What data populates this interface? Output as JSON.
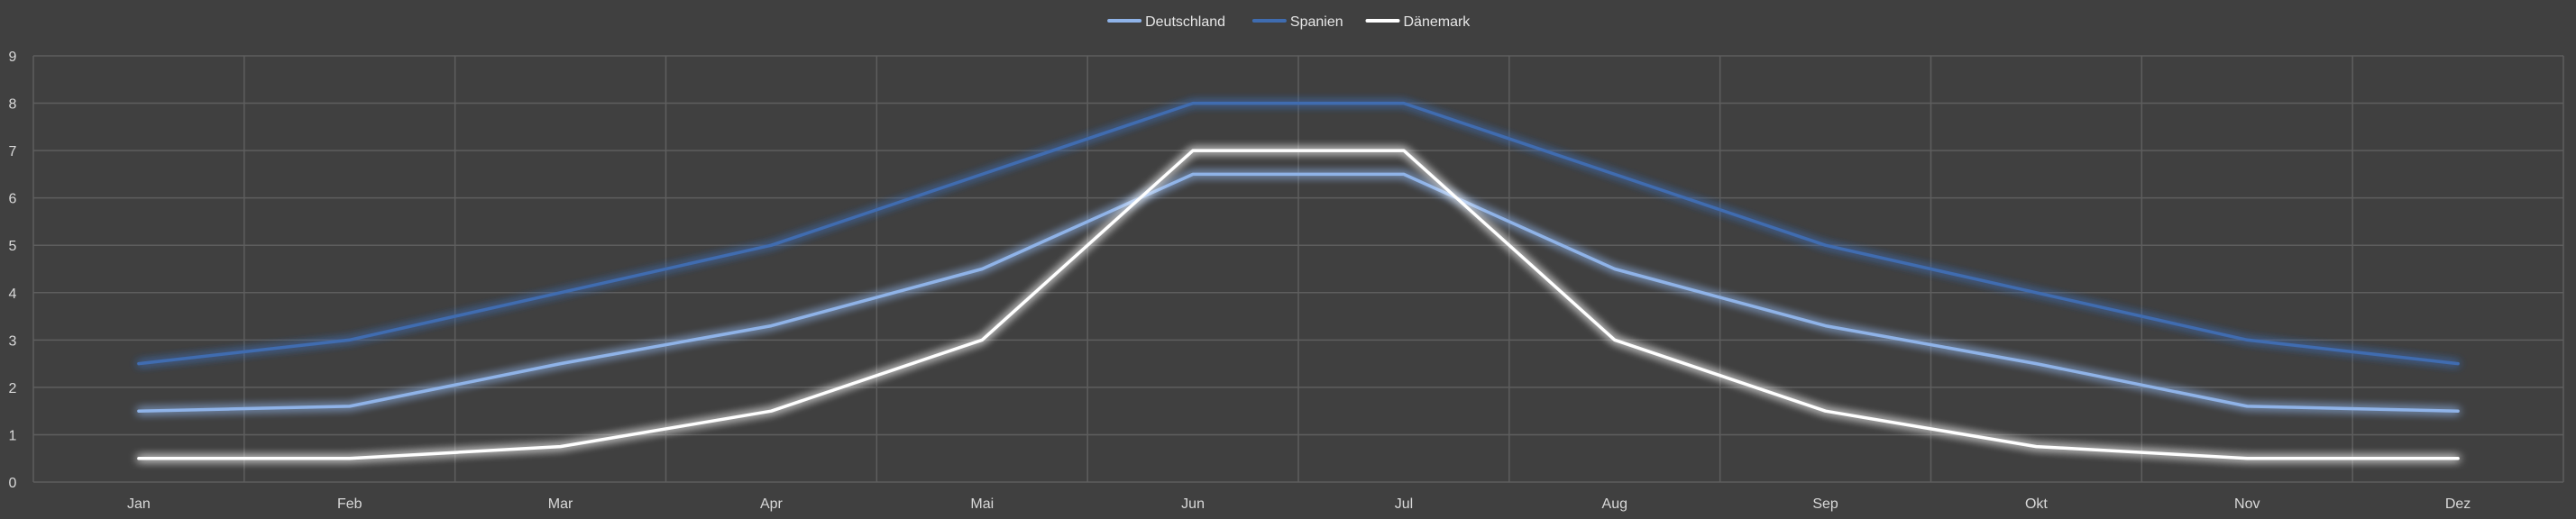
{
  "chart_data": {
    "type": "line",
    "title": "",
    "xlabel": "",
    "ylabel": "",
    "categories": [
      "Jan",
      "Feb",
      "Mar",
      "Apr",
      "Mai",
      "Jun",
      "Jul",
      "Aug",
      "Sep",
      "Okt",
      "Nov",
      "Dez"
    ],
    "ylim": [
      0,
      9
    ],
    "yticks": [
      0,
      1,
      2,
      3,
      4,
      5,
      6,
      7,
      8,
      9
    ],
    "grid": true,
    "legend_position": "top-center",
    "series": [
      {
        "name": "Deutschland",
        "color": "#8fb3e8",
        "values": [
          1.5,
          1.6,
          2.5,
          3.3,
          4.5,
          6.5,
          6.5,
          4.5,
          3.3,
          2.5,
          1.6,
          1.5
        ]
      },
      {
        "name": "Spanien",
        "color": "#3f6cb0",
        "values": [
          2.5,
          3.0,
          4.0,
          5.0,
          6.5,
          8.0,
          8.0,
          6.5,
          5.0,
          4.0,
          3.0,
          2.5
        ]
      },
      {
        "name": "Dänemark",
        "color": "#ffffff",
        "values": [
          0.5,
          0.5,
          0.75,
          1.5,
          3.0,
          7.0,
          7.0,
          3.0,
          1.5,
          0.75,
          0.5,
          0.5
        ]
      }
    ]
  }
}
